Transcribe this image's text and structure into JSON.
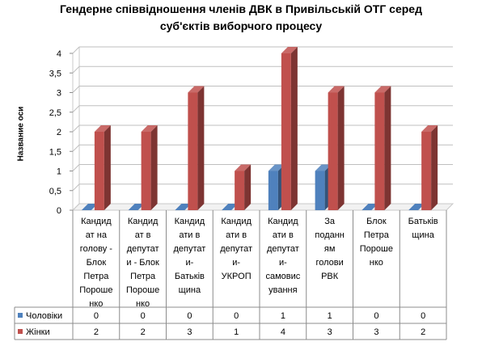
{
  "chart_data": {
    "type": "bar",
    "title_lines": [
      "Гендерне співвідношення членів ДВК в Привільській ОТГ серед",
      "суб'єктів виборчого процесу"
    ],
    "ylabel": "Название оси",
    "ylim": [
      0,
      4
    ],
    "y_ticks": [
      "0",
      "0,5",
      "1",
      "1,5",
      "2",
      "2,5",
      "3",
      "3,5",
      "4"
    ],
    "y_tick_values": [
      0,
      0.5,
      1,
      1.5,
      2,
      2.5,
      3,
      3.5,
      4
    ],
    "grid": true,
    "categories": [
      [
        "Кандид",
        "ат на",
        "голову -",
        "Блок",
        "Петра",
        "Пороше",
        "нко"
      ],
      [
        "Кандид",
        "ат в",
        "депутат",
        "и - Блок",
        "Петра",
        "Пороше",
        "нко"
      ],
      [
        "Кандид",
        "ати в",
        "депутат",
        "и-",
        "Батьків",
        "щина"
      ],
      [
        "Кандид",
        "ати в",
        "депутат",
        "и-",
        "УКРОП"
      ],
      [
        "Кандид",
        "ати в",
        "депутат",
        "и-",
        "самовис",
        "ування"
      ],
      [
        "За",
        "поданн",
        "ям",
        "голови",
        "РВК"
      ],
      [
        "Блок",
        "Петра",
        "Пороше",
        "нко"
      ],
      [
        "Батьків",
        "щина"
      ]
    ],
    "series": [
      {
        "name": "Чоловіки",
        "color": "#4f81bd",
        "values": [
          0,
          0,
          0,
          0,
          1,
          1,
          0,
          0
        ],
        "labels": [
          "0",
          "0",
          "0",
          "0",
          "1",
          "1",
          "0",
          "0"
        ]
      },
      {
        "name": "Жінки",
        "color": "#c0504d",
        "values": [
          2,
          2,
          3,
          1,
          4,
          3,
          3,
          2
        ],
        "labels": [
          "2",
          "2",
          "3",
          "1",
          "4",
          "3",
          "3",
          "2"
        ]
      }
    ]
  }
}
